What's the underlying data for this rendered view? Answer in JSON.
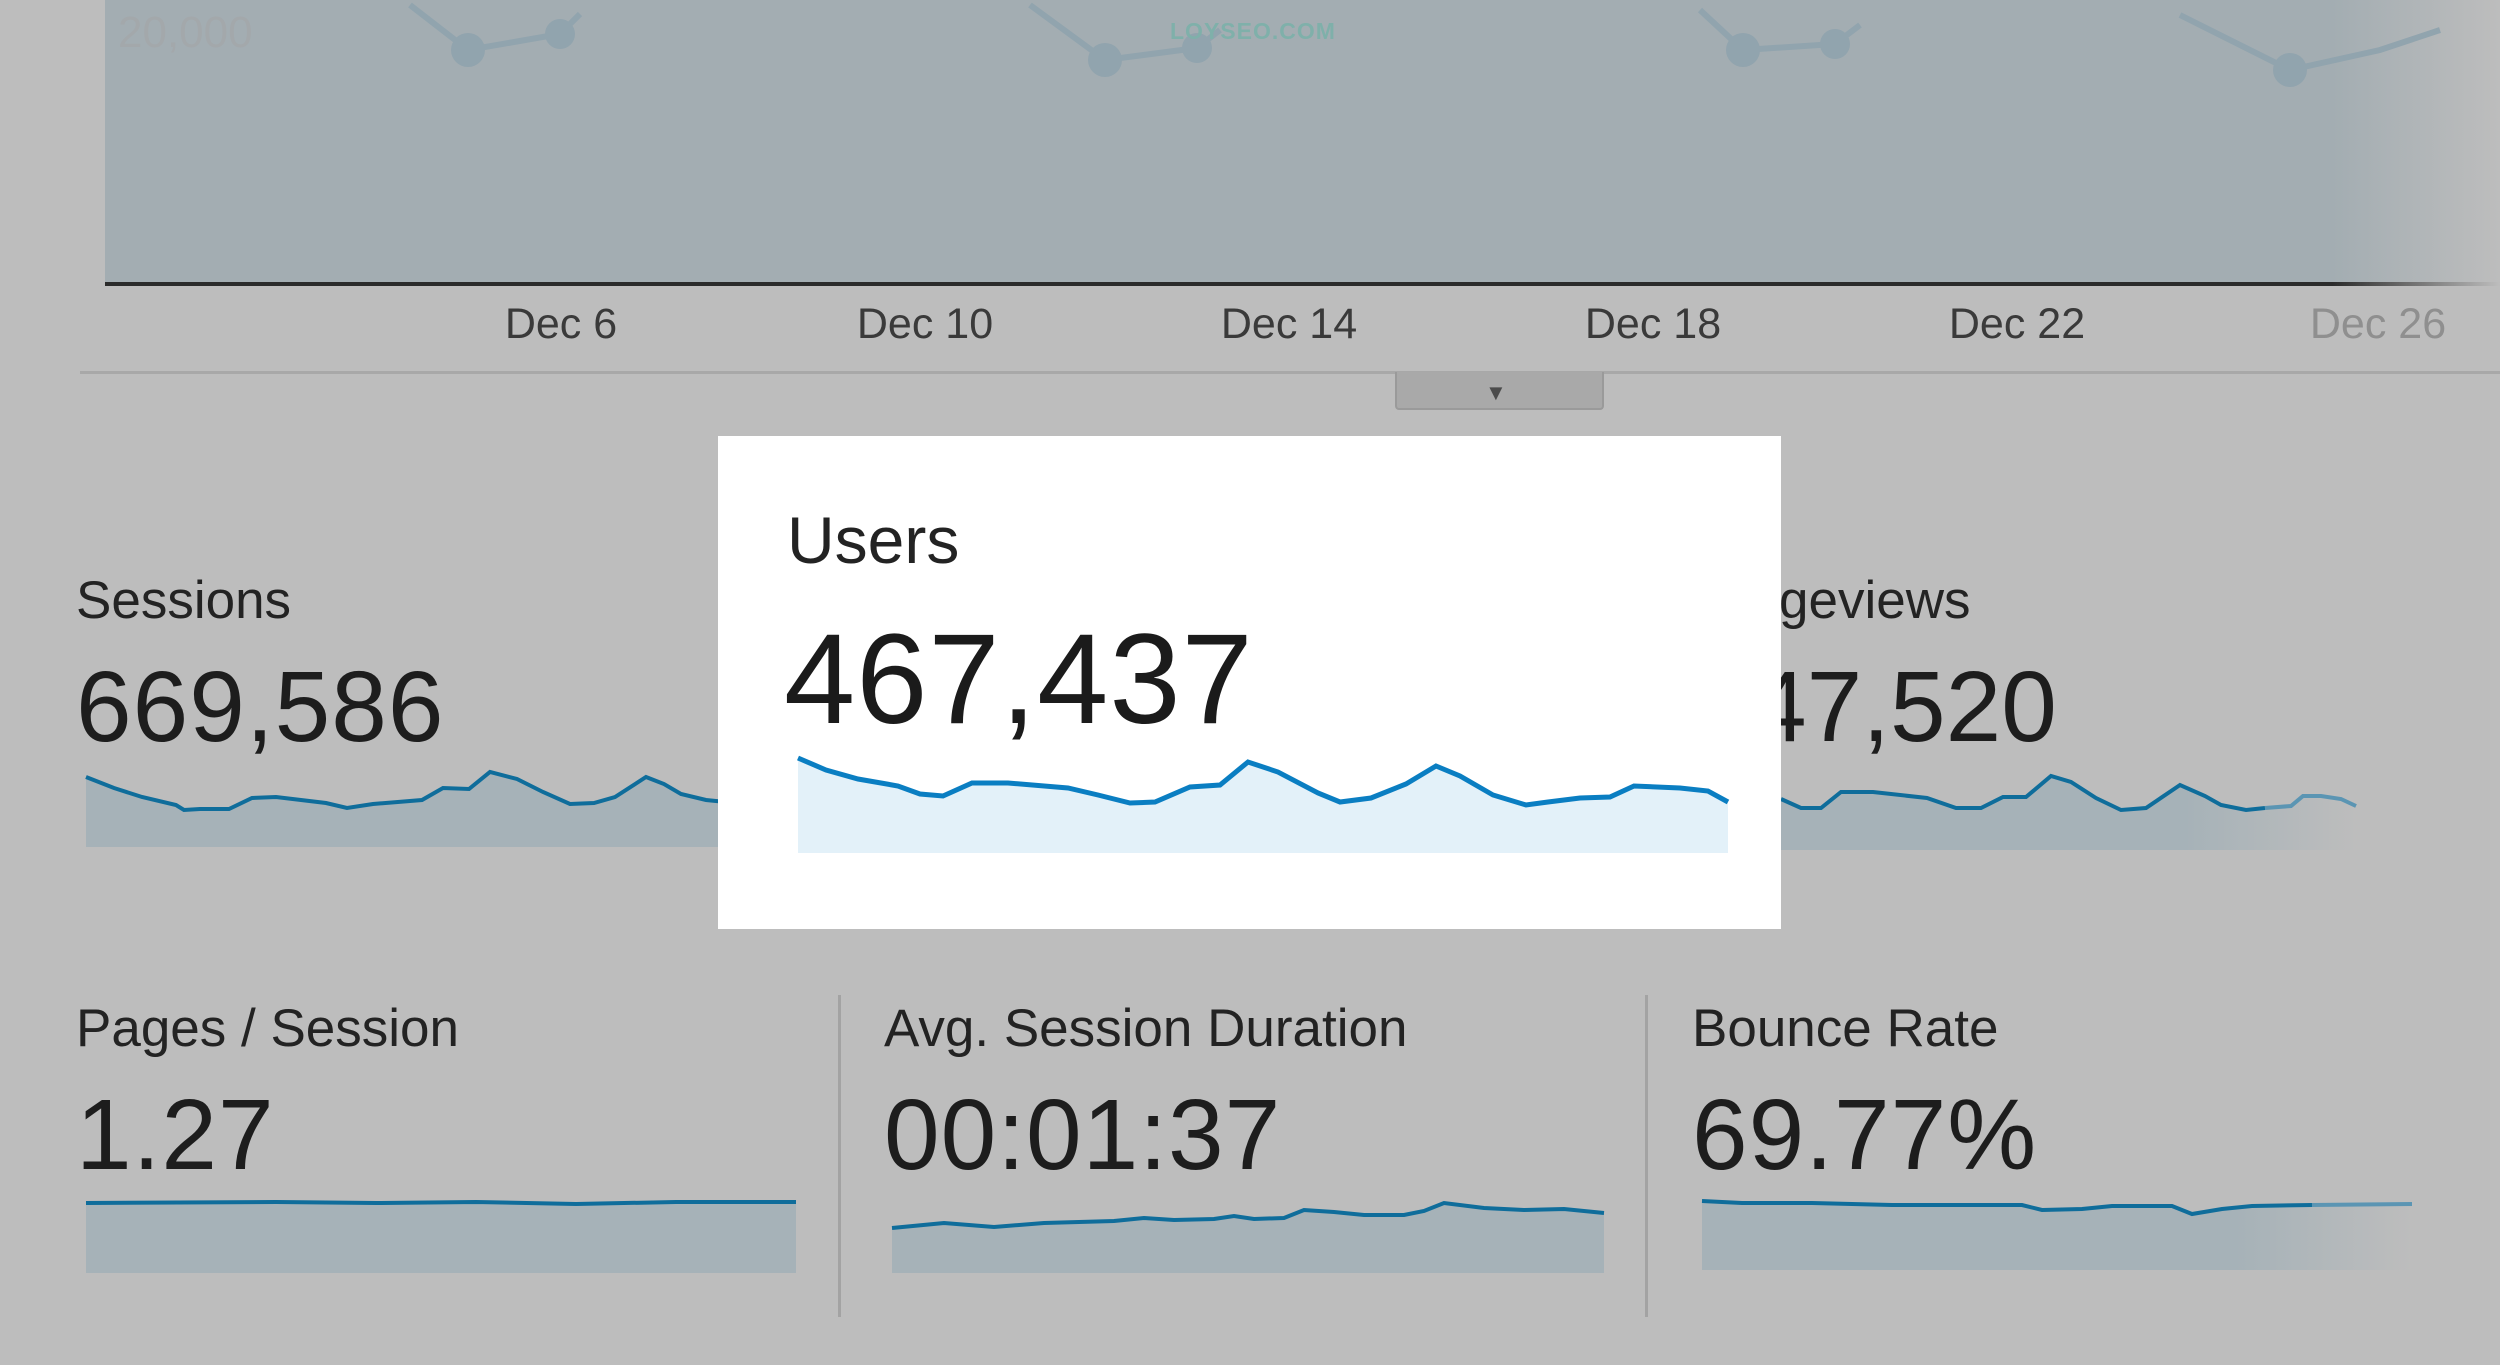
{
  "main_chart": {
    "y_tick_label": "20,000",
    "watermark": "LOYSEO.COM",
    "x_ticks": [
      "Dec 6",
      "Dec 10",
      "Dec 14",
      "Dec 18",
      "Dec 22",
      "Dec 26"
    ],
    "toggle_icon": "caret-down-icon"
  },
  "metrics": {
    "sessions": {
      "label": "Sessions",
      "value": "669,586"
    },
    "users": {
      "label": "Users",
      "value": "467,437"
    },
    "pageviews": {
      "label": "Pageviews",
      "visible_label": "geviews",
      "visible_value": "47,520"
    },
    "pages_per_session": {
      "label": "Pages / Session",
      "value": "1.27"
    },
    "avg_session_duration": {
      "label": "Avg. Session Duration",
      "value": "00:01:37"
    },
    "bounce_rate": {
      "label": "Bounce Rate",
      "value": "69.77%"
    }
  },
  "colors": {
    "line": "#0a7ec2",
    "highlight_fill": "#e3f1f9",
    "dim_fill": "#a6b2b8",
    "overlay_bg": "#bdbdbd",
    "highlight_bg": "#ffffff"
  }
}
